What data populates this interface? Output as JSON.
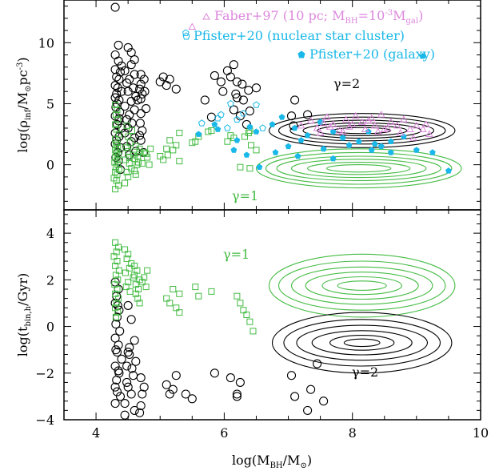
{
  "chart_data": [
    {
      "type": "scatter",
      "panel": "top",
      "ylabel": "log(ρ_inf/M_⊙pc^-3)",
      "ylabel_parts": {
        "pre": "log(",
        "rho": "ρ",
        "sub": "inf",
        "mid": "/M",
        "sun": "⊙",
        "pc": "pc",
        "exp": "-3",
        "post": ")"
      },
      "xlim": [
        3.5,
        10
      ],
      "ylim": [
        -3.7,
        13.5
      ],
      "yticks": [
        0,
        5,
        10
      ],
      "yticklabels": [
        "0",
        "5",
        "10"
      ],
      "legend": [
        {
          "marker": "triangle",
          "color": "#dd88dd",
          "text_main": "Faber+97 (10 pc; M",
          "text_sub": "BH",
          "text_mid": "=10",
          "text_exp": "-3",
          "text_m": "M",
          "text_sub2": "gal",
          "text_end": ")"
        },
        {
          "marker": "pentagon-open",
          "color": "#1ab8e8",
          "text": "Pfister+20 (nuclear star cluster)"
        },
        {
          "marker": "pentagon-filled",
          "color": "#1ab8e8",
          "text": "Pfister+20 (galaxy)"
        }
      ],
      "annotations": [
        {
          "text": "γ=2",
          "x": 8.1,
          "y": 4.6,
          "color": "#000000"
        },
        {
          "text": "γ=1",
          "x": 6.3,
          "y": -2.5,
          "color": "#44bb44"
        }
      ],
      "series": [
        {
          "marker": "circle-open",
          "color": "#000000",
          "x": [
            4.3,
            4.35,
            4.3,
            4.35,
            4.4,
            4.3,
            4.38,
            4.32,
            4.36,
            4.3,
            4.34,
            4.4,
            4.32,
            4.3,
            4.36,
            4.33,
            4.31,
            4.37,
            4.3,
            4.35,
            4.33,
            4.4,
            4.3,
            4.36,
            4.32,
            4.3,
            4.38,
            4.34,
            4.31,
            4.35,
            4.5,
            4.55,
            4.6,
            4.55,
            4.45,
            4.6,
            4.52,
            4.48,
            4.58,
            4.5,
            4.62,
            4.55,
            4.45,
            4.6,
            4.52,
            4.48,
            4.56,
            4.5,
            4.45,
            4.6,
            4.55,
            4.48,
            4.62,
            4.52,
            4.7,
            4.75,
            4.7,
            4.68,
            4.72,
            4.65,
            4.78,
            4.7,
            4.69,
            4.72,
            4.68,
            4.7,
            4.38,
            4.74,
            4.36,
            4.76,
            4.7,
            5.0,
            5.05,
            5.1,
            5.15,
            5.25,
            5.85,
            5.7,
            5.98,
            5.8,
            5.95,
            6.15,
            6.05,
            6.1,
            6.2,
            6.18,
            6.15,
            6.28,
            6.2,
            6.38,
            6.3,
            6.5,
            6.25,
            6.4,
            6.35,
            7.1,
            7.05,
            7.08,
            7.3
          ],
          "y": [
            12.9,
            9.8,
            9.0,
            8.5,
            8.1,
            7.8,
            7.6,
            7.2,
            7.0,
            6.5,
            6.3,
            6.0,
            5.8,
            5.5,
            5.3,
            5.0,
            4.7,
            4.3,
            4.0,
            3.6,
            3.3,
            3.0,
            2.6,
            2.3,
            2.0,
            1.7,
            1.4,
            1.0,
            0.6,
            0.3,
            9.6,
            9.2,
            8.6,
            8.2,
            7.7,
            7.4,
            7.0,
            6.7,
            6.3,
            6.0,
            5.6,
            5.2,
            4.8,
            4.5,
            4.1,
            3.7,
            3.4,
            3.0,
            2.6,
            2.2,
            1.9,
            1.5,
            1.1,
            0.8,
            7.4,
            7.0,
            6.6,
            6.2,
            5.8,
            5.3,
            4.6,
            4.2,
            3.4,
            2.8,
            2.4,
            2.0,
            -0.4,
            1.0,
            3.8,
            6.0,
            5.4,
            6.8,
            7.2,
            6.5,
            7.0,
            6.2,
            7.3,
            5.3,
            6.0,
            3.9,
            6.8,
            8.2,
            7.7,
            7.2,
            6.8,
            5.8,
            4.5,
            6.6,
            5.5,
            6.1,
            5.3,
            6.3,
            4.0,
            4.4,
            3.3,
            5.3,
            4.0,
            3.2,
            4.1
          ]
        },
        {
          "marker": "square-open",
          "color": "#44bb44",
          "x": [
            4.3,
            4.35,
            4.32,
            4.28,
            4.33,
            4.3,
            4.36,
            4.31,
            4.34,
            4.29,
            4.33,
            4.3,
            4.35,
            4.32,
            4.3,
            4.34,
            4.31,
            4.33,
            4.3,
            4.36,
            4.32,
            4.3,
            4.34,
            4.31,
            4.33,
            4.3,
            4.45,
            4.5,
            4.48,
            4.55,
            4.52,
            4.46,
            4.58,
            4.5,
            4.47,
            4.53,
            4.5,
            4.56,
            4.48,
            4.52,
            4.6,
            4.64,
            4.6,
            4.68,
            4.62,
            4.66,
            4.62,
            4.65,
            4.68,
            4.75,
            4.72,
            4.8,
            4.78,
            4.85,
            4.83,
            5.0,
            5.05,
            5.12,
            5.1,
            5.15,
            5.25,
            5.2,
            5.3,
            5.5,
            5.3,
            5.55,
            5.6,
            5.75,
            5.8,
            6.25,
            6.05,
            6.15,
            6.32,
            6.38,
            6.4,
            6.4,
            6.1,
            6.5,
            6.42
          ],
          "y": [
            -2.0,
            -1.7,
            -1.3,
            -1.1,
            -0.8,
            -0.6,
            -0.4,
            -0.2,
            0.0,
            0.2,
            0.4,
            0.6,
            0.8,
            1.0,
            1.2,
            1.4,
            1.6,
            1.8,
            2.1,
            2.5,
            2.9,
            3.3,
            3.7,
            4.1,
            4.5,
            4.9,
            -1.5,
            -1.0,
            -0.6,
            -0.3,
            0.1,
            0.4,
            0.8,
            1.1,
            1.4,
            1.8,
            2.3,
            2.8,
            3.2,
            0.6,
            -0.5,
            0.0,
            0.5,
            1.0,
            1.5,
            0.2,
            -0.8,
            0.7,
            1.3,
            1.0,
            0.1,
            0.6,
            0.9,
            1.3,
            0.0,
            0.7,
            0.4,
            0.8,
            1.3,
            2.0,
            1.6,
            1.2,
            2.6,
            1.8,
            0.3,
            1.9,
            2.3,
            2.7,
            2.8,
            -0.2,
            1.9,
            2.2,
            2.3,
            2.6,
            -0.3,
            2.8,
            2.4,
            1.2,
            1.6
          ]
        },
        {
          "marker": "pentagon-open",
          "color": "#1ab8e8",
          "x": [
            5.4,
            5.65,
            5.9,
            6.1,
            6.3,
            6.5,
            6.6,
            6.2,
            5.95,
            6.05
          ],
          "y": [
            10.8,
            3.4,
            3.8,
            5.0,
            4.2,
            4.9,
            3.0,
            3.7,
            4.1,
            3.0
          ]
        },
        {
          "marker": "pentagon-filled",
          "color": "#1ab8e8",
          "x": [
            5.6,
            5.9,
            6.2,
            6.5,
            6.75,
            6.9,
            7.1,
            7.3,
            7.5,
            7.7,
            7.85,
            8.1,
            8.25,
            8.45,
            8.6,
            8.8,
            9.0,
            9.25,
            9.5,
            5.85,
            6.15,
            6.35,
            6.8,
            7.0,
            7.2,
            7.55,
            7.95,
            8.3,
            8.6,
            6.4,
            9.1,
            6.55,
            7.15,
            7.7,
            8.35
          ],
          "y": [
            2.5,
            2.9,
            2.0,
            2.7,
            3.3,
            3.9,
            3.0,
            2.4,
            3.5,
            2.7,
            2.2,
            1.9,
            2.7,
            1.5,
            1.9,
            2.3,
            1.2,
            1.0,
            -0.5,
            3.3,
            1.2,
            0.8,
            1.0,
            1.5,
            2.0,
            1.3,
            1.6,
            1.2,
            1.0,
            3.1,
            8.9,
            -0.2,
            0.7,
            0.5,
            1.7
          ]
        },
        {
          "marker": "triangle-open",
          "color": "#dd88dd",
          "x": [
            7.2,
            7.35,
            7.45,
            7.55,
            7.6,
            7.7,
            7.8,
            7.9,
            7.95,
            8.05,
            8.15,
            8.2,
            8.3,
            8.35,
            8.45,
            8.5,
            8.6,
            8.7,
            8.8,
            8.9,
            9.0,
            9.1,
            9.2,
            7.5,
            7.65,
            7.85,
            8.0,
            8.25,
            8.4,
            8.55,
            8.75,
            8.95,
            9.15,
            5.5
          ],
          "y": [
            3.2,
            3.6,
            3.0,
            3.4,
            3.9,
            3.3,
            2.8,
            3.7,
            3.1,
            4.0,
            3.5,
            2.9,
            3.8,
            3.2,
            4.1,
            2.9,
            3.5,
            3.2,
            3.7,
            2.9,
            3.2,
            2.9,
            2.5,
            2.6,
            3.1,
            2.7,
            3.3,
            3.6,
            2.7,
            3.0,
            2.6,
            2.2,
            3.3,
            11.3
          ]
        }
      ],
      "contours": [
        {
          "color": "#000000",
          "cx": 8.15,
          "cy": 2.8,
          "ellipses": [
            [
              1.45,
              1.4
            ],
            [
              1.3,
              1.1
            ],
            [
              1.12,
              0.85
            ],
            [
              0.92,
              0.62
            ],
            [
              0.7,
              0.42
            ],
            [
              0.45,
              0.25
            ]
          ]
        },
        {
          "color": "#44bb44",
          "cx": 8.1,
          "cy": -0.3,
          "ellipses": [
            [
              1.6,
              1.6
            ],
            [
              1.45,
              1.3
            ],
            [
              1.28,
              1.0
            ],
            [
              1.05,
              0.75
            ],
            [
              0.8,
              0.5
            ],
            [
              0.5,
              0.3
            ]
          ]
        }
      ]
    },
    {
      "type": "scatter",
      "panel": "bottom",
      "xlabel": "log(M_BH/M_⊙)",
      "xlabel_parts": {
        "pre": "log(M",
        "sub": "BH",
        "mid": "/M",
        "sun": "⊙",
        "post": ")"
      },
      "ylabel": "log(t_bin,h/Gyr)",
      "ylabel_parts": {
        "pre": "log(t",
        "sub": "bin,h",
        "post": "/Gyr)"
      },
      "xlim": [
        3.5,
        10
      ],
      "ylim": [
        -4,
        5
      ],
      "xticks": [
        4,
        6,
        8,
        10
      ],
      "xticklabels": [
        "4",
        "6",
        "8",
        "10"
      ],
      "yticks": [
        -4,
        -2,
        0,
        2,
        4
      ],
      "yticklabels": [
        "−4",
        "−2",
        "0",
        "2",
        "4"
      ],
      "annotations": [
        {
          "text": "γ=1",
          "x": 6.3,
          "y": 3.0,
          "color": "#44bb44"
        },
        {
          "text": "γ=2",
          "x": 8.2,
          "y": -1.8,
          "color": "#000000"
        }
      ],
      "series": [
        {
          "marker": "circle-open",
          "color": "#000000",
          "x": [
            4.3,
            4.35,
            4.32,
            4.3,
            4.36,
            4.33,
            4.31,
            4.37,
            4.3,
            4.35,
            4.33,
            4.4,
            4.3,
            4.36,
            4.32,
            4.3,
            4.38,
            4.34,
            4.31,
            4.35,
            4.33,
            4.3,
            4.5,
            4.55,
            4.6,
            4.52,
            4.48,
            4.58,
            4.5,
            4.62,
            4.55,
            4.45,
            4.6,
            4.52,
            4.48,
            4.56,
            4.5,
            4.45,
            4.7,
            4.75,
            4.7,
            4.68,
            4.72,
            5.1,
            5.2,
            5.15,
            5.25,
            5.5,
            5.4,
            5.85,
            6.1,
            6.2,
            6.25,
            6.2,
            7.1,
            7.3,
            7.05,
            7.35,
            7.45,
            7.55
          ],
          "y": [
            1.9,
            1.6,
            1.3,
            1.0,
            0.7,
            0.4,
            0.1,
            -0.2,
            -0.5,
            -0.8,
            -1.1,
            -1.4,
            -1.7,
            -2.0,
            -2.3,
            -2.6,
            -3.0,
            0.9,
            -1.0,
            -1.9,
            -2.8,
            -3.3,
            0.9,
            0.3,
            -0.6,
            -1.2,
            -1.7,
            -2.1,
            -2.6,
            -1.5,
            -2.9,
            -3.3,
            -3.6,
            -0.9,
            -2.4,
            -1.8,
            -1.1,
            -3.8,
            -2.2,
            -2.6,
            -3.4,
            -3.7,
            -2.9,
            -2.5,
            -2.7,
            -2.9,
            -2.1,
            -3.1,
            -2.9,
            -2.0,
            -2.2,
            -3.0,
            -2.4,
            -2.9,
            -3.0,
            -3.6,
            -2.1,
            -2.7,
            -1.6,
            -3.2
          ]
        },
        {
          "marker": "square-open",
          "color": "#44bb44",
          "x": [
            4.3,
            4.35,
            4.32,
            4.28,
            4.33,
            4.3,
            4.36,
            4.31,
            4.34,
            4.29,
            4.33,
            4.3,
            4.35,
            4.32,
            4.3,
            4.34,
            4.31,
            4.45,
            4.5,
            4.48,
            4.55,
            4.52,
            4.46,
            4.58,
            4.5,
            4.47,
            4.53,
            4.6,
            4.64,
            4.6,
            4.68,
            4.62,
            4.66,
            4.62,
            4.65,
            4.68,
            4.75,
            4.72,
            4.8,
            4.78,
            5.1,
            5.15,
            5.25,
            5.2,
            5.3,
            5.55,
            5.6,
            5.3,
            5.8,
            6.2,
            6.25,
            6.3,
            6.35,
            6.4,
            6.45
          ],
          "y": [
            3.6,
            3.4,
            3.2,
            3.0,
            2.8,
            2.6,
            2.4,
            2.2,
            2.0,
            1.8,
            1.6,
            1.4,
            1.2,
            1.0,
            0.8,
            0.6,
            0.4,
            3.3,
            3.1,
            2.9,
            2.7,
            2.5,
            2.3,
            2.1,
            1.9,
            1.7,
            1.5,
            2.6,
            2.4,
            2.2,
            2.0,
            1.8,
            1.6,
            1.4,
            1.2,
            1.0,
            2.1,
            1.9,
            2.4,
            1.7,
            1.2,
            1.0,
            0.8,
            1.6,
            1.4,
            1.7,
            1.3,
            0.6,
            1.5,
            1.3,
            1.0,
            0.7,
            0.5,
            0.2,
            -0.2
          ]
        }
      ],
      "contours": [
        {
          "color": "#44bb44",
          "cx": 8.15,
          "cy": 1.75,
          "ellipses": [
            [
              1.45,
              1.35
            ],
            [
              1.3,
              1.05
            ],
            [
              1.1,
              0.8
            ],
            [
              0.88,
              0.58
            ],
            [
              0.62,
              0.38
            ],
            [
              0.38,
              0.2
            ]
          ]
        },
        {
          "color": "#000000",
          "cx": 8.15,
          "cy": -0.7,
          "ellipses": [
            [
              1.4,
              1.3
            ],
            [
              1.22,
              1.0
            ],
            [
              1.02,
              0.75
            ],
            [
              0.78,
              0.52
            ],
            [
              0.5,
              0.32
            ],
            [
              0.28,
              0.16
            ]
          ]
        }
      ]
    }
  ]
}
